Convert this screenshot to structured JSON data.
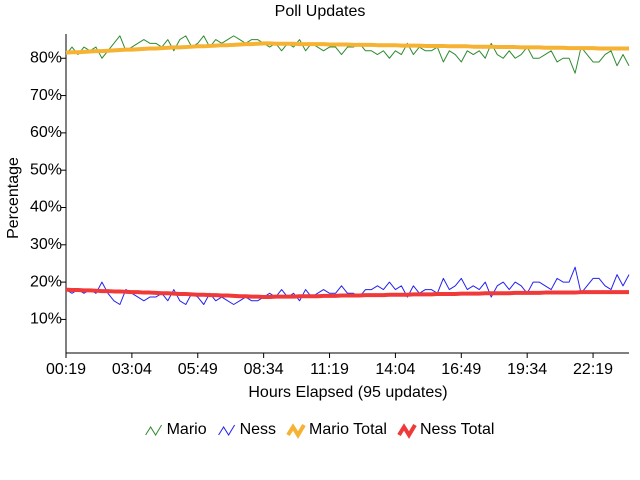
{
  "chart_data": {
    "type": "line",
    "title": "Poll Updates",
    "x_label": "Hours Elapsed (95 updates)",
    "y_label": "Percentage",
    "categories": [
      "00:19",
      null,
      null,
      null,
      null,
      null,
      null,
      null,
      null,
      null,
      null,
      "03:04",
      null,
      null,
      null,
      null,
      null,
      null,
      null,
      null,
      null,
      null,
      "05:49",
      null,
      null,
      null,
      null,
      null,
      null,
      null,
      null,
      null,
      null,
      "08:34",
      null,
      null,
      null,
      null,
      null,
      null,
      null,
      null,
      null,
      null,
      "11:19",
      null,
      null,
      null,
      null,
      null,
      null,
      null,
      null,
      null,
      null,
      "14:04",
      null,
      null,
      null,
      null,
      null,
      null,
      null,
      null,
      null,
      null,
      "16:49",
      null,
      null,
      null,
      null,
      null,
      null,
      null,
      null,
      null,
      null,
      "19:34",
      null,
      null,
      null,
      null,
      null,
      null,
      null,
      null,
      null,
      null,
      "22:19",
      null,
      null,
      null,
      null,
      null,
      null
    ],
    "series": [
      {
        "name": "Mario",
        "color": "#2e8b2e",
        "width": 1,
        "values": [
          81,
          83,
          81,
          83,
          82,
          83,
          80,
          82,
          84,
          86,
          82,
          83,
          84,
          85,
          84,
          84,
          83,
          85,
          82,
          85,
          86,
          83,
          84,
          86,
          83,
          85,
          84,
          85,
          86,
          85,
          84,
          85,
          85,
          84,
          83,
          84,
          82,
          84,
          83,
          85,
          82,
          84,
          83,
          82,
          83,
          83,
          81,
          83,
          83,
          84,
          82,
          82,
          81,
          82,
          80,
          82,
          81,
          84,
          81,
          83,
          82,
          82,
          83,
          79,
          82,
          81,
          79,
          82,
          81,
          82,
          80,
          84,
          81,
          80,
          82,
          80,
          81,
          83,
          80,
          80,
          81,
          82,
          79,
          80,
          80,
          76,
          83,
          81,
          79,
          79,
          81,
          82,
          78,
          81,
          78
        ]
      },
      {
        "name": "Ness",
        "color": "#2222ee",
        "width": 1,
        "values": [
          18,
          17,
          18,
          17,
          18,
          17,
          20,
          17,
          15,
          14,
          18,
          17,
          16,
          15,
          16,
          16,
          17,
          15,
          18,
          15,
          14,
          17,
          16,
          14,
          17,
          15,
          16,
          15,
          14,
          15,
          16,
          15,
          15,
          16,
          17,
          16,
          18,
          16,
          17,
          15,
          18,
          16,
          17,
          18,
          17,
          17,
          19,
          17,
          17,
          16,
          18,
          18,
          19,
          18,
          20,
          18,
          19,
          16,
          19,
          17,
          18,
          18,
          17,
          21,
          18,
          19,
          21,
          18,
          19,
          18,
          20,
          16,
          19,
          20,
          18,
          20,
          19,
          17,
          20,
          20,
          19,
          18,
          21,
          20,
          20,
          24,
          17,
          19,
          21,
          21,
          19,
          18,
          22,
          19,
          22
        ]
      },
      {
        "name": "Mario Total",
        "color": "#f5b233",
        "width": 4,
        "values": [
          81.5,
          81.6,
          81.6,
          81.7,
          81.8,
          81.9,
          81.9,
          82.0,
          82.1,
          82.2,
          82.3,
          82.3,
          82.4,
          82.5,
          82.6,
          82.6,
          82.7,
          82.8,
          82.9,
          82.9,
          83.0,
          83.1,
          83.2,
          83.2,
          83.3,
          83.4,
          83.5,
          83.5,
          83.6,
          83.7,
          83.8,
          83.8,
          83.9,
          84.0,
          84.0,
          83.9,
          83.9,
          83.9,
          83.9,
          83.8,
          83.8,
          83.8,
          83.8,
          83.8,
          83.7,
          83.7,
          83.7,
          83.7,
          83.6,
          83.6,
          83.6,
          83.6,
          83.5,
          83.5,
          83.5,
          83.5,
          83.4,
          83.4,
          83.4,
          83.4,
          83.3,
          83.3,
          83.3,
          83.3,
          83.2,
          83.2,
          83.2,
          83.2,
          83.1,
          83.1,
          83.1,
          83.1,
          83.0,
          83.0,
          83.0,
          83.0,
          82.9,
          82.9,
          82.9,
          82.9,
          82.8,
          82.8,
          82.8,
          82.8,
          82.7,
          82.7,
          82.7,
          82.7,
          82.7,
          82.6,
          82.6,
          82.6,
          82.6,
          82.6,
          82.6
        ]
      },
      {
        "name": "Ness Total",
        "color": "#f03a3a",
        "width": 4,
        "values": [
          18.0,
          17.9,
          17.9,
          17.8,
          17.8,
          17.7,
          17.6,
          17.6,
          17.5,
          17.5,
          17.4,
          17.3,
          17.3,
          17.2,
          17.2,
          17.1,
          17.0,
          17.0,
          16.9,
          16.8,
          16.8,
          16.7,
          16.6,
          16.6,
          16.5,
          16.5,
          16.4,
          16.4,
          16.3,
          16.2,
          16.2,
          16.1,
          16.1,
          16.0,
          16.0,
          16.1,
          16.1,
          16.1,
          16.1,
          16.2,
          16.2,
          16.2,
          16.2,
          16.3,
          16.3,
          16.3,
          16.4,
          16.4,
          16.4,
          16.4,
          16.5,
          16.5,
          16.5,
          16.5,
          16.6,
          16.6,
          16.6,
          16.6,
          16.7,
          16.7,
          16.7,
          16.7,
          16.8,
          16.8,
          16.8,
          16.8,
          16.9,
          16.9,
          16.9,
          16.9,
          17.0,
          17.0,
          17.0,
          17.0,
          17.0,
          17.1,
          17.1,
          17.1,
          17.1,
          17.1,
          17.2,
          17.2,
          17.2,
          17.2,
          17.2,
          17.2,
          17.3,
          17.3,
          17.3,
          17.3,
          17.3,
          17.3,
          17.3,
          17.3,
          17.3
        ]
      }
    ],
    "ylim": [
      1,
      86.5
    ],
    "yticks": [
      {
        "value": 10,
        "label": "10%"
      },
      {
        "value": 20,
        "label": "20%"
      },
      {
        "value": 30,
        "label": "30%"
      },
      {
        "value": 40,
        "label": "40%"
      },
      {
        "value": 50,
        "label": "50%"
      },
      {
        "value": 60,
        "label": "60%"
      },
      {
        "value": 70,
        "label": "70%"
      },
      {
        "value": 80,
        "label": "80%"
      }
    ],
    "grid": false,
    "legend": "bottom"
  }
}
